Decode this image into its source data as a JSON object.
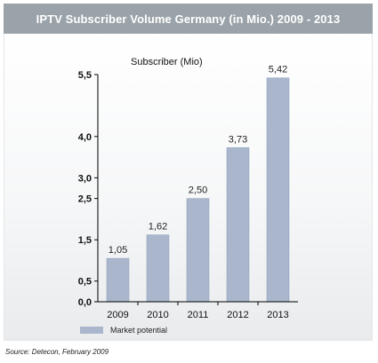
{
  "colors": {
    "title_bg": "#9AA3A9",
    "bar": "#A9B6CC",
    "bar_edge": "#8E9DB8",
    "axis": "#000000"
  },
  "title": "IPTV Subscriber Volume Germany (in Mio.) 2009 - 2013",
  "source": "Source: Detecon, February 2009",
  "chart_data": {
    "type": "bar",
    "title": "IPTV Subscriber Volume Germany (in Mio.) 2009 - 2013",
    "ylabel": "Subscriber (Mio)",
    "xlabel": "",
    "categories": [
      "2009",
      "2010",
      "2011",
      "2012",
      "2013"
    ],
    "series": [
      {
        "name": "Market potential",
        "values": [
          1.05,
          1.62,
          2.5,
          3.73,
          5.42
        ],
        "labels": [
          "1,05",
          "1,62",
          "2,50",
          "3,73",
          "5,42"
        ]
      }
    ],
    "yticks": [
      0.0,
      0.5,
      1.5,
      2.5,
      3.0,
      4.0,
      5.5
    ],
    "ytick_labels": [
      "0,0",
      "0,5",
      "1,5",
      "2,5",
      "3,0",
      "4,0",
      "5,5"
    ],
    "ylim": [
      0,
      5.5
    ],
    "grid": false,
    "legend_position": "bottom-left"
  }
}
